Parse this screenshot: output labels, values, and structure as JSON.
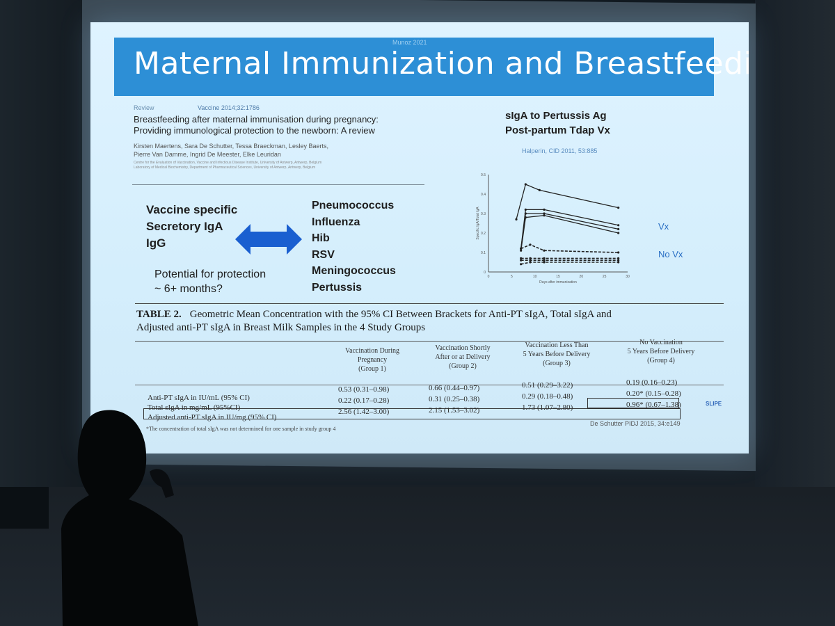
{
  "slide": {
    "watermark": "Munoz 2021",
    "title": "Maternal Immunization and Breastfeeding",
    "article": {
      "label": "Review",
      "journal": "Vaccine 2014;32:1786",
      "title_line1": "Breastfeeding after maternal immunisation during pregnancy:",
      "title_line2": "Providing immunological protection to the newborn: A review",
      "authors_line1": "Kirsten Maertens, Sara De Schutter, Tessa Braeckman, Lesley Baerts,",
      "authors_line2": "Pierre Van Damme, Ingrid De Meester, Elke Leuridan",
      "affiliation_line1": "Centre for the Evaluation of Vaccination, Vaccine and Infectious Disease Institute, University of Antwerp, Antwerp, Belgium",
      "affiliation_line2": "Laboratory of Medical Biochemistry, Department of Pharmaceutical Sciences, University of Antwerp, Antwerp, Belgium"
    },
    "vaccine_specific": [
      "Vaccine specific",
      "Secretory IgA",
      "IgG"
    ],
    "protection": [
      "Potential for protection",
      "~ 6+ months?"
    ],
    "pathogens": [
      "Pneumococcus",
      "Influenza",
      "Hib",
      "RSV",
      "Meningococcus",
      "Pertussis"
    ],
    "chart": {
      "title_line1": "sIgA to Pertussis Ag",
      "title_line2": "Post-partum Tdap Vx",
      "citation": "Halperin, CID 2011, 53:885",
      "vx_label": "Vx",
      "novx_label": "No Vx"
    },
    "table": {
      "caption_label": "TABLE 2.",
      "caption_line1": "Geometric Mean Concentration with the 95% CI Between Brackets for Anti-PT sIgA, Total sIgA and",
      "caption_line2": "Adjusted anti-PT sIgA in Breast Milk Samples in the 4 Study Groups",
      "columns": [
        {
          "l1": "Vaccination During",
          "l2": "Pregnancy",
          "l3": "(Group 1)"
        },
        {
          "l1": "Vaccination Shortly",
          "l2": "After or at Delivery",
          "l3": "(Group 2)"
        },
        {
          "l1": "Vaccination Less Than",
          "l2": "5 Years Before Delivery",
          "l3": "(Group 3)"
        },
        {
          "l1": "No Vaccination",
          "l2": "5 Years Before Delivery",
          "l3": "(Group 4)"
        }
      ],
      "rows": [
        {
          "label": "Anti-PT sIgA in IU/mL (95% CI)",
          "values": [
            "0.53 (0.31–0.98)",
            "0.66 (0.44–0.97)",
            "0.51 (0.29–3.22)",
            "0.19 (0.16–0.23)"
          ]
        },
        {
          "label": "Total sIgA in mg/mL (95%CI)",
          "values": [
            "0.22 (0.17–0.28)",
            "0.31 (0.25–0.38)",
            "0.29 (0.18–0.48)",
            "0.20* (0.15–0.28)"
          ]
        },
        {
          "label": "Adjusted anti-PT sIgA in IU/mg (95% CI)",
          "values": [
            "2.56 (1.42–3.00)",
            "2.15 (1.53–3.02)",
            "1.73 (1.07–2.80)",
            "0.96* (0.67–1.38)"
          ]
        }
      ],
      "footnote": "*The concentration of total sIgA was not determined for one sample in study group 4",
      "reference": "De Schutter PIDJ 2015, 34:e149",
      "logo": "SLIPE"
    }
  },
  "chart_data": {
    "type": "line",
    "title": "sIgA to Pertussis Ag Post-partum Tdap Vx",
    "xlabel": "Days after immunization",
    "ylabel": "Specific IgA/Total IgA",
    "xlim": [
      0,
      30
    ],
    "ylim": [
      0,
      0.5
    ],
    "x_ticks": [
      0,
      5,
      10,
      15,
      20,
      25,
      30
    ],
    "y_ticks": [
      0,
      0.1,
      0.2,
      0.3,
      0.4,
      0.5
    ],
    "series": [
      {
        "group": "Vx",
        "style": "solid",
        "x": [
          6,
          8,
          11,
          28
        ],
        "y": [
          0.27,
          0.45,
          0.42,
          0.33
        ]
      },
      {
        "group": "Vx",
        "style": "solid",
        "x": [
          7,
          8,
          12,
          28
        ],
        "y": [
          0.12,
          0.32,
          0.32,
          0.24
        ]
      },
      {
        "group": "Vx",
        "style": "solid",
        "x": [
          7,
          8,
          12,
          28
        ],
        "y": [
          0.12,
          0.3,
          0.3,
          0.22
        ]
      },
      {
        "group": "Vx",
        "style": "solid",
        "x": [
          7,
          8,
          12,
          28
        ],
        "y": [
          0.11,
          0.28,
          0.29,
          0.2
        ]
      },
      {
        "group": "No Vx",
        "style": "dashed",
        "x": [
          7,
          9,
          12,
          28
        ],
        "y": [
          0.12,
          0.14,
          0.11,
          0.1
        ]
      },
      {
        "group": "No Vx",
        "style": "dashed",
        "x": [
          7,
          9,
          12,
          28
        ],
        "y": [
          0.07,
          0.07,
          0.07,
          0.07
        ]
      },
      {
        "group": "No Vx",
        "style": "dashed",
        "x": [
          7,
          9,
          12,
          28
        ],
        "y": [
          0.06,
          0.06,
          0.06,
          0.06
        ]
      },
      {
        "group": "No Vx",
        "style": "dashed",
        "x": [
          7,
          9,
          12,
          28
        ],
        "y": [
          0.04,
          0.05,
          0.05,
          0.05
        ]
      }
    ]
  }
}
